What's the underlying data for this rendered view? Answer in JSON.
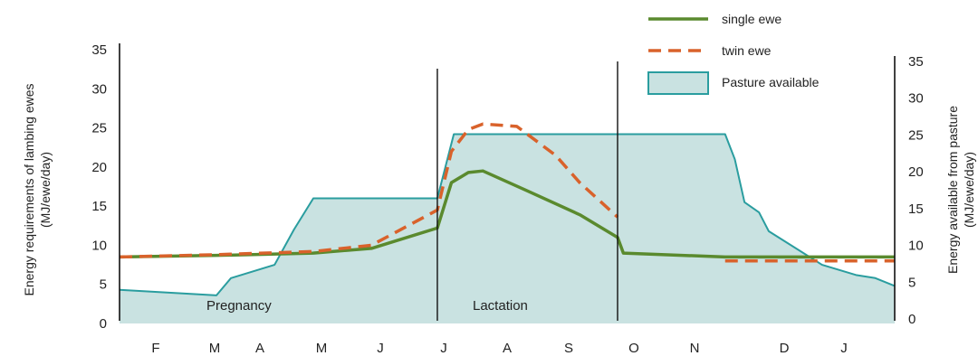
{
  "chart_data": {
    "type": "area",
    "categories": [
      "F",
      "M",
      "A",
      "M",
      "J",
      "J",
      "A",
      "S",
      "O",
      "N",
      "D",
      "J"
    ],
    "ylabel_left": "Energy requirements of lambing ewes",
    "ylabel_left_unit": "(MJ/ewe/day)",
    "ylabel_right": "Energy available from pasture",
    "ylabel_right_unit": "(MJ/ewe/day)",
    "ylim_left": [
      0,
      35
    ],
    "ylim_right": [
      0,
      35
    ],
    "yticks_left": [
      0,
      5,
      10,
      15,
      20,
      25,
      30,
      35
    ],
    "yticks_right": [
      0,
      5,
      10,
      15,
      20,
      25,
      30,
      35
    ],
    "grid": false,
    "legend_position": "top-right",
    "phases": [
      {
        "label": "Pregnancy",
        "start": 0,
        "end": 6.56
      },
      {
        "label": "Lactation",
        "start": 6.56,
        "end": 10.28
      }
    ],
    "series": [
      {
        "name": "single ewe",
        "kind": "line",
        "color": "#5a8a2e",
        "x": [
          0,
          2,
          4,
          5.2,
          6.56,
          6.85,
          7.2,
          7.5,
          8.4,
          9.5,
          10.28,
          10.4,
          12.5,
          16
        ],
        "y": [
          8.5,
          8.7,
          9.0,
          9.6,
          12.2,
          18.0,
          19.3,
          19.5,
          17.0,
          13.9,
          11.0,
          9.0,
          8.5,
          8.5
        ]
      },
      {
        "name": "twin ewe",
        "kind": "dashed-line",
        "color": "#d9622b",
        "x": [
          0,
          2,
          4,
          5.2,
          6.56,
          6.85,
          7.2,
          7.5,
          8.2,
          9.0,
          9.5,
          10.28
        ],
        "y": [
          8.5,
          8.8,
          9.2,
          10.0,
          14.5,
          22.0,
          24.8,
          25.5,
          25.2,
          21.5,
          18.0,
          13.6
        ]
      },
      {
        "name": "twin ewe continuation",
        "kind": "dashed-line",
        "color": "#d9622b",
        "x": [
          12.5,
          16
        ],
        "y": [
          8.0,
          8.0
        ]
      },
      {
        "name": "Pasture available",
        "kind": "area",
        "color": "#2a9d9f",
        "fill": "#c9e2e1",
        "x": [
          0,
          2.0,
          2.3,
          3.2,
          3.6,
          4.0,
          4.6,
          6.56,
          6.9,
          7.3,
          12.5,
          12.7,
          12.9,
          13.2,
          13.4,
          14.5,
          15.2,
          15.6,
          16
        ],
        "y": [
          4.3,
          3.6,
          5.8,
          7.5,
          12.0,
          16.0,
          16.0,
          16.0,
          24.2,
          24.2,
          24.2,
          21.0,
          15.5,
          14.2,
          11.8,
          7.5,
          6.2,
          5.8,
          4.8
        ]
      }
    ]
  }
}
